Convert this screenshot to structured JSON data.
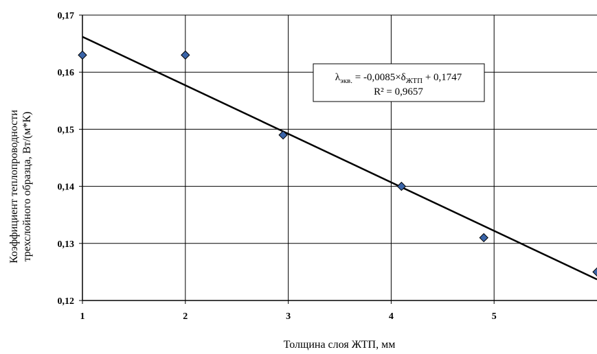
{
  "chart_data": {
    "type": "scatter",
    "title": "",
    "xlabel": "Толщина слоя ЖТП, мм",
    "ylabel_lines": [
      "Коэффициент теплопроводности",
      "трехслойного образца, Вт/(м*К)"
    ],
    "xlim": [
      1,
      6
    ],
    "ylim": [
      0.12,
      0.17
    ],
    "x_ticks": [
      1,
      2,
      3,
      4,
      5
    ],
    "x_tick_labels": [
      "1",
      "2",
      "3",
      "4",
      "5"
    ],
    "y_ticks": [
      0.12,
      0.13,
      0.14,
      0.15,
      0.16,
      0.17
    ],
    "y_tick_labels": [
      "0,12",
      "0,13",
      "0,14",
      "0,15",
      "0,16",
      "0,17"
    ],
    "grid": true,
    "series": [
      {
        "points": [
          {
            "x": 1.0,
            "y": 0.163
          },
          {
            "x": 2.0,
            "y": 0.163
          },
          {
            "x": 2.95,
            "y": 0.149
          },
          {
            "x": 4.1,
            "y": 0.14
          },
          {
            "x": 4.9,
            "y": 0.131
          },
          {
            "x": 6.0,
            "y": 0.125
          }
        ],
        "marker_color": "#3a64a8"
      }
    ],
    "trendline": {
      "slope": -0.0085,
      "intercept": 0.1747,
      "equation": {
        "lambda": "λ",
        "lambda_sub": "экв.",
        "middle": " = -0,0085×",
        "delta": "δ",
        "delta_sub": "ЖТП",
        "tail": " + 0,1747"
      },
      "r_squared": "R² = 0,9657"
    }
  }
}
